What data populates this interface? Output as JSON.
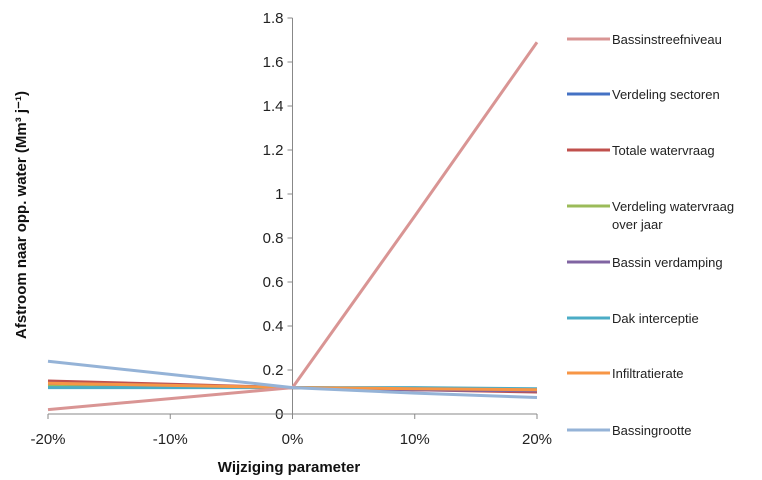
{
  "chart_data": {
    "type": "line",
    "x": [
      "-20%",
      "-10%",
      "0%",
      "10%",
      "20%"
    ],
    "xlabel": "Wijziging parameter",
    "ylabel": "Afstroom naar opp. water (Mm³ j⁻¹)",
    "ylim": [
      0,
      1.8
    ],
    "yticks": [
      "0",
      "0.2",
      "0.4",
      "0.6",
      "0.8",
      "1",
      "1.2",
      "1.4",
      "1.6",
      "1.8"
    ],
    "grid": false,
    "legend_position": "right",
    "series": [
      {
        "name": "Bassinstreefniveau",
        "color": "#d99594",
        "values": [
          0.02,
          0.07,
          0.12,
          0.9,
          1.69
        ]
      },
      {
        "name": "Verdeling sectoren",
        "color": "#4472c4",
        "values": [
          0.13,
          0.125,
          0.12,
          0.115,
          0.11
        ]
      },
      {
        "name": "Totale watervraag",
        "color": "#c0504d",
        "values": [
          0.15,
          0.135,
          0.12,
          0.11,
          0.1
        ]
      },
      {
        "name": "Verdeling watervraag over jaar",
        "color": "#9bbb59",
        "values": [
          0.13,
          0.125,
          0.12,
          0.115,
          0.11
        ]
      },
      {
        "name": "Bassin verdamping",
        "color": "#8064a2",
        "values": [
          0.14,
          0.13,
          0.12,
          0.11,
          0.105
        ]
      },
      {
        "name": "Dak interceptie",
        "color": "#4bacc6",
        "values": [
          0.12,
          0.12,
          0.12,
          0.12,
          0.115
        ]
      },
      {
        "name": "Infiltratierate",
        "color": "#f79646",
        "values": [
          0.14,
          0.13,
          0.12,
          0.115,
          0.11
        ]
      },
      {
        "name": "Bassingrootte",
        "color": "#95b3d7",
        "values": [
          0.24,
          0.18,
          0.12,
          0.095,
          0.075
        ]
      }
    ]
  }
}
